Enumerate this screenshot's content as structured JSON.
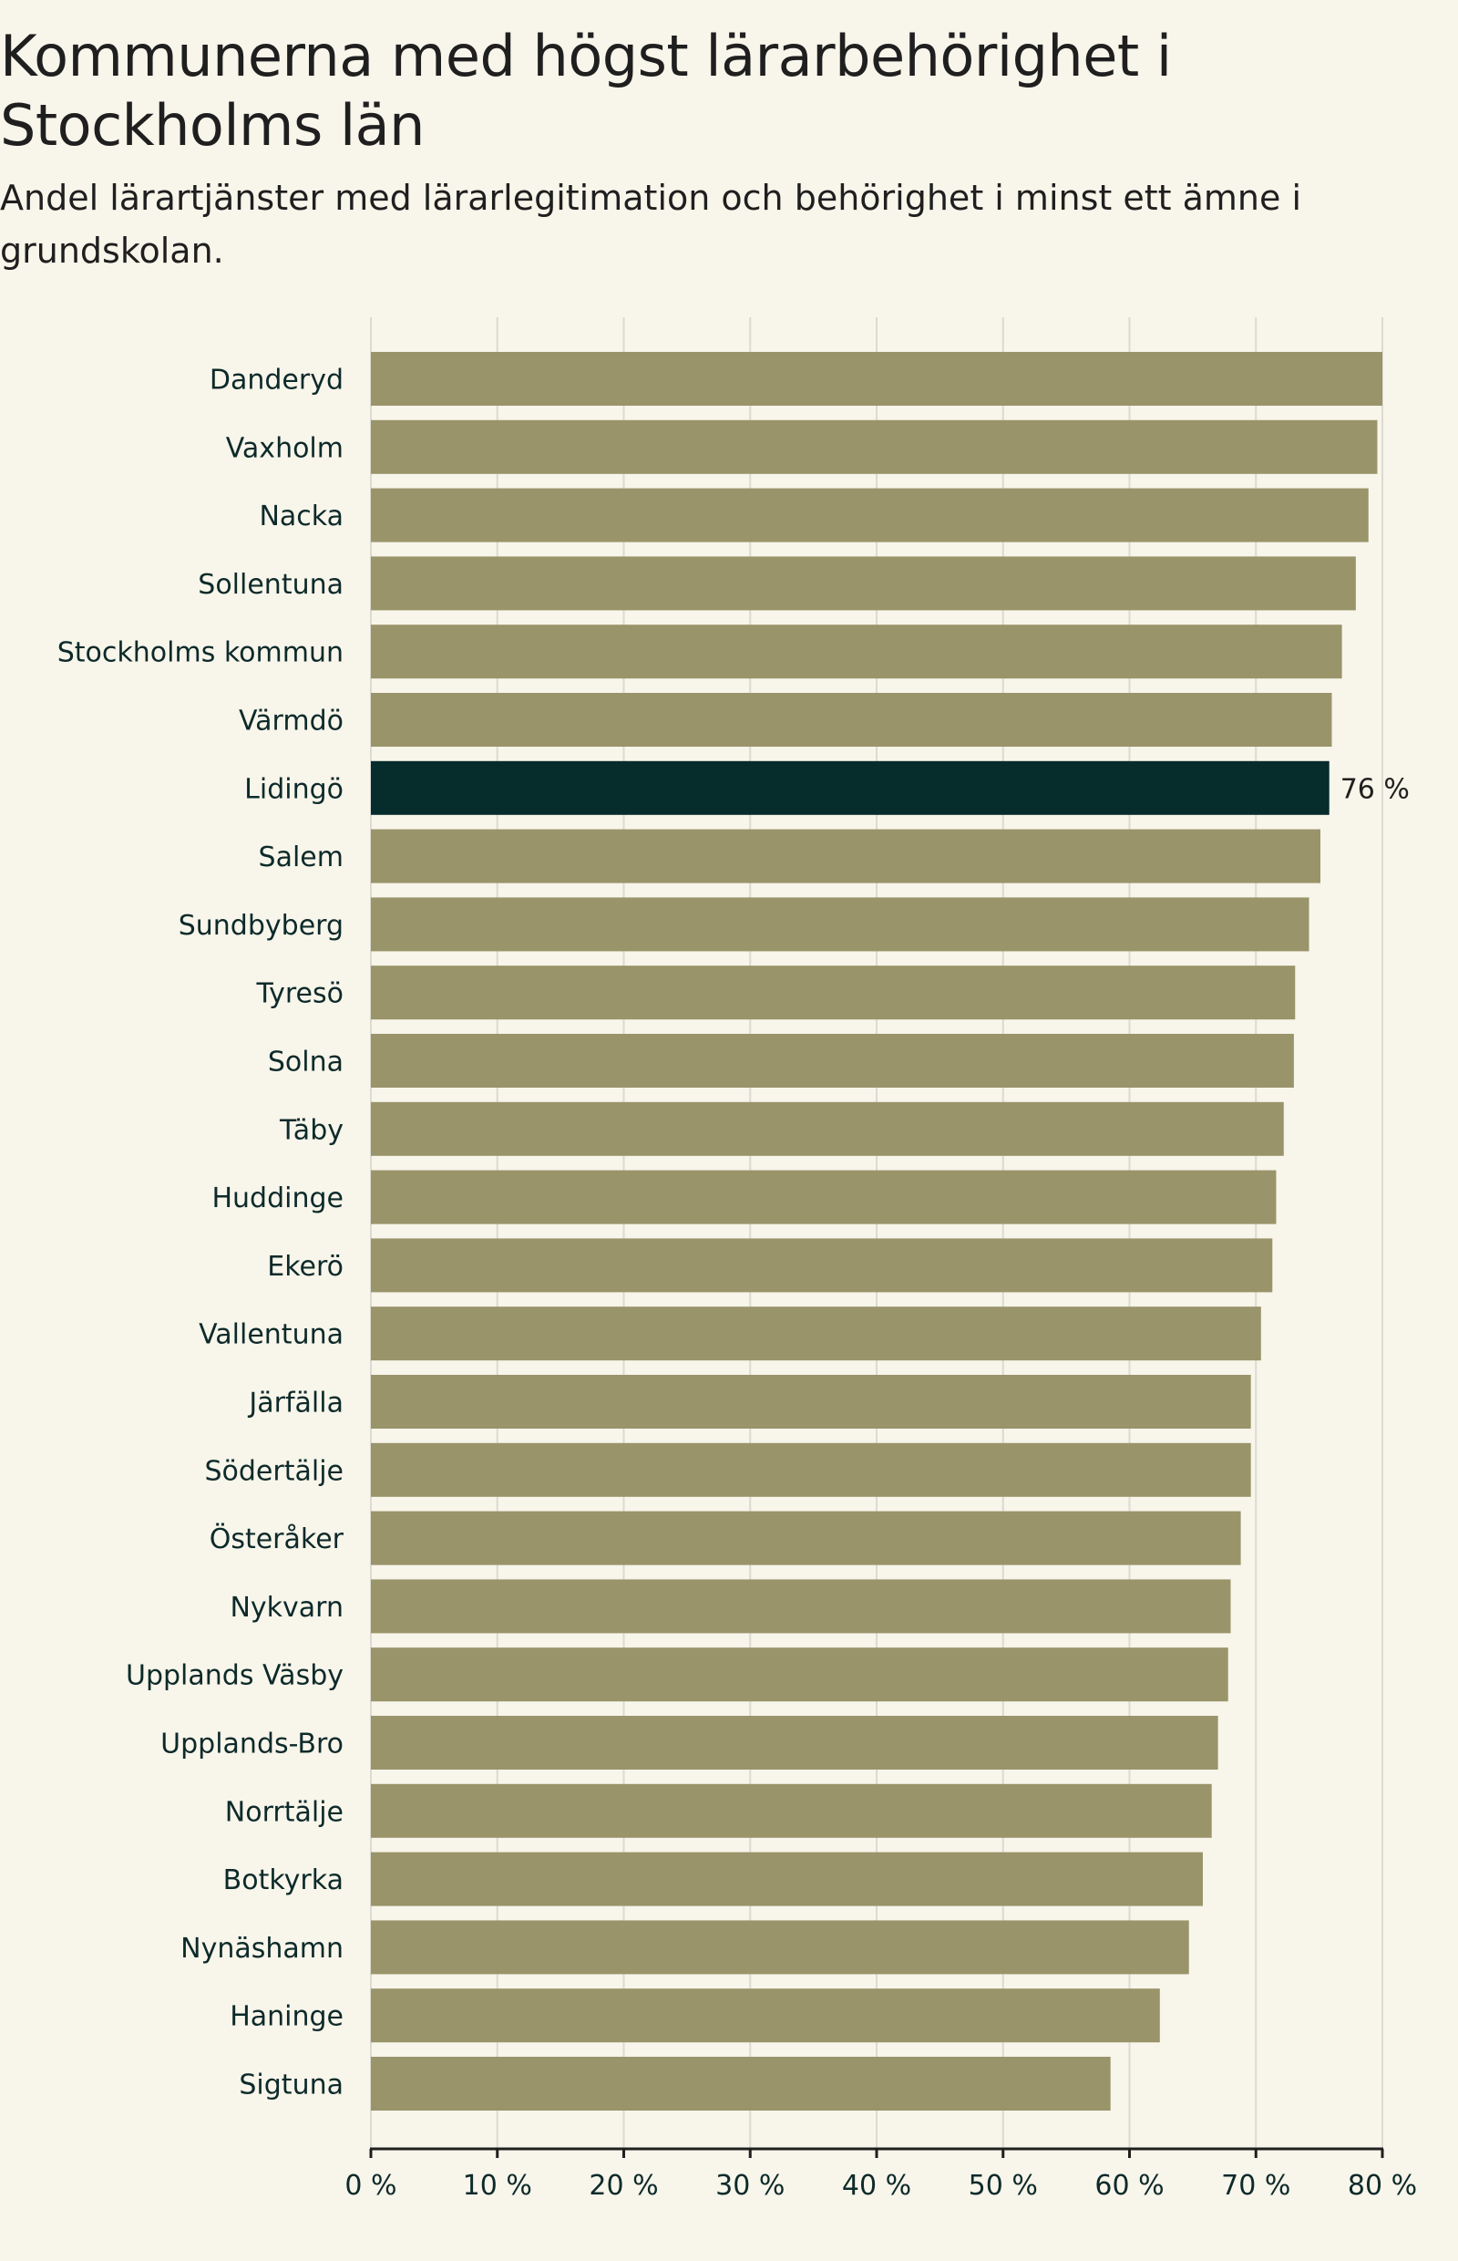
{
  "header": {
    "title": "Kommunerna med högst lärarbehörighet i Stockholms län",
    "subtitle": "Andel lärartjänster med lärarlegitimation och behörighet i minst ett ämne i grundskolan."
  },
  "colors": {
    "background": "#f8f5ea",
    "bar": "#99946a",
    "highlight": "#062c2c",
    "grid": "#dcdad2",
    "axis": "#1f1f1f",
    "label": "#0d2a2a"
  },
  "chart_data": {
    "type": "bar",
    "orientation": "horizontal",
    "title": "Kommunerna med högst lärarbehörighet i Stockholms län",
    "subtitle": "Andel lärartjänster med lärarlegitimation och behörighet i minst ett ämne i grundskolan.",
    "xlabel": "",
    "ylabel": "",
    "xlim": [
      0,
      80
    ],
    "ticks": [
      0,
      10,
      20,
      30,
      40,
      50,
      60,
      70,
      80
    ],
    "tick_labels": [
      "0 %",
      "10 %",
      "20 %",
      "30 %",
      "40 %",
      "50 %",
      "60 %",
      "70 %",
      "80 %"
    ],
    "grid": true,
    "categories": [
      "Danderyd",
      "Vaxholm",
      "Nacka",
      "Sollentuna",
      "Stockholms kommun",
      "Värmdö",
      "Lidingö",
      "Salem",
      "Sundbyberg",
      "Tyresö",
      "Solna",
      "Täby",
      "Huddinge",
      "Ekerö",
      "Vallentuna",
      "Järfälla",
      "Södertälje",
      "Österåker",
      "Nykvarn",
      "Upplands Väsby",
      "Upplands-Bro",
      "Norrtälje",
      "Botkyrka",
      "Nynäshamn",
      "Haninge",
      "Sigtuna"
    ],
    "values": [
      80.0,
      79.6,
      78.9,
      77.9,
      76.8,
      76.0,
      75.8,
      75.1,
      74.2,
      73.1,
      73.0,
      72.2,
      71.6,
      71.3,
      70.4,
      69.6,
      69.6,
      68.8,
      68.0,
      67.8,
      67.0,
      66.5,
      65.8,
      64.7,
      62.4,
      58.5
    ],
    "highlight": "Lidingö",
    "annotations": [
      {
        "category": "Lidingö",
        "text": "76 %"
      }
    ]
  }
}
